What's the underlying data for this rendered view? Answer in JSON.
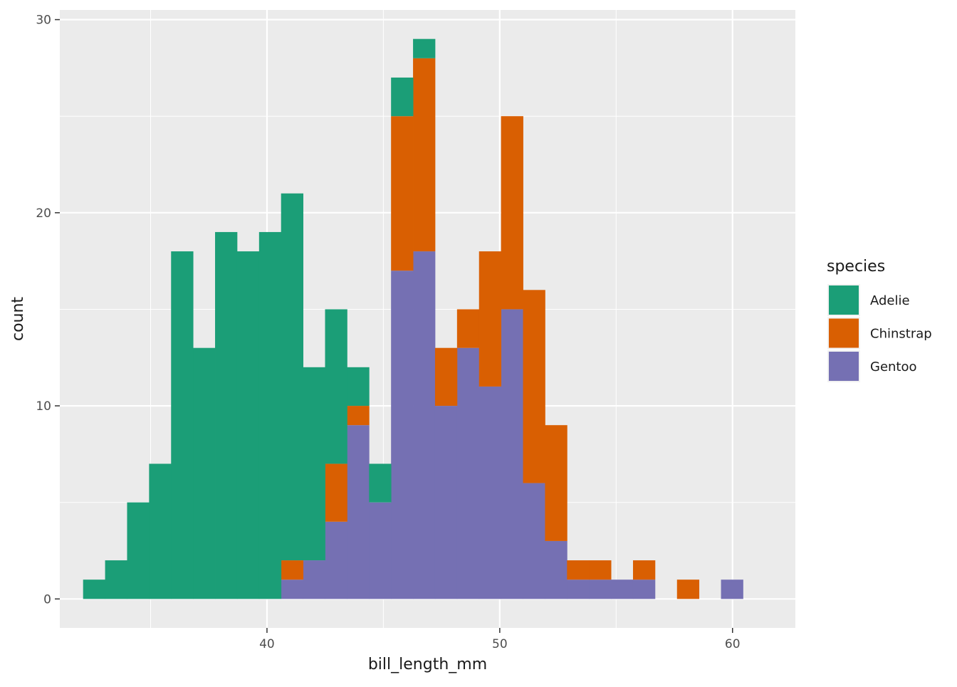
{
  "chart_data": {
    "type": "bar",
    "subtype": "stacked-histogram",
    "xlabel": "bill_length_mm",
    "ylabel": "count",
    "xlim": [
      31.1,
      62.7
    ],
    "ylim": [
      -1.5,
      30.5
    ],
    "xticks": [
      40,
      50,
      60
    ],
    "yticks": [
      0,
      10,
      20,
      30
    ],
    "grid": true,
    "bin_width": 0.945,
    "legend": {
      "title": "species",
      "position": "right",
      "entries": [
        "Adelie",
        "Chinstrap",
        "Gentoo"
      ]
    },
    "series": [
      {
        "name": "Adelie",
        "color": "#1B9E77",
        "bins": [
          {
            "x0": 32.1,
            "x1": 33.045,
            "count": 1
          },
          {
            "x0": 33.045,
            "x1": 33.99,
            "count": 2
          },
          {
            "x0": 33.99,
            "x1": 34.935,
            "count": 5
          },
          {
            "x0": 34.935,
            "x1": 35.88,
            "count": 7
          },
          {
            "x0": 35.88,
            "x1": 36.825,
            "count": 18
          },
          {
            "x0": 36.825,
            "x1": 37.77,
            "count": 13
          },
          {
            "x0": 37.77,
            "x1": 38.715,
            "count": 19
          },
          {
            "x0": 38.715,
            "x1": 39.66,
            "count": 18
          },
          {
            "x0": 39.66,
            "x1": 40.605,
            "count": 19
          },
          {
            "x0": 40.605,
            "x1": 41.55,
            "count": 19
          },
          {
            "x0": 41.55,
            "x1": 42.495,
            "count": 10
          },
          {
            "x0": 42.495,
            "x1": 43.44,
            "count": 8
          },
          {
            "x0": 43.44,
            "x1": 44.385,
            "count": 2
          },
          {
            "x0": 44.385,
            "x1": 45.33,
            "count": 2
          },
          {
            "x0": 45.33,
            "x1": 46.275,
            "count": 2
          },
          {
            "x0": 46.275,
            "x1": 47.22,
            "count": 1
          }
        ]
      },
      {
        "name": "Chinstrap",
        "color": "#D95F02",
        "bins": [
          {
            "x0": 40.605,
            "x1": 41.55,
            "count": 1
          },
          {
            "x0": 42.495,
            "x1": 43.44,
            "count": 3
          },
          {
            "x0": 43.44,
            "x1": 44.385,
            "count": 1
          },
          {
            "x0": 45.33,
            "x1": 46.275,
            "count": 8
          },
          {
            "x0": 46.275,
            "x1": 47.22,
            "count": 10
          },
          {
            "x0": 47.22,
            "x1": 48.165,
            "count": 3
          },
          {
            "x0": 48.165,
            "x1": 49.11,
            "count": 2
          },
          {
            "x0": 49.11,
            "x1": 50.055,
            "count": 7
          },
          {
            "x0": 50.055,
            "x1": 51.0,
            "count": 10
          },
          {
            "x0": 51.0,
            "x1": 51.945,
            "count": 10
          },
          {
            "x0": 51.945,
            "x1": 52.89,
            "count": 6
          },
          {
            "x0": 52.89,
            "x1": 53.835,
            "count": 1
          },
          {
            "x0": 53.835,
            "x1": 54.78,
            "count": 1
          },
          {
            "x0": 55.725,
            "x1": 56.67,
            "count": 1
          },
          {
            "x0": 57.615,
            "x1": 58.56,
            "count": 1
          }
        ]
      },
      {
        "name": "Gentoo",
        "color": "#7570B3",
        "bins": [
          {
            "x0": 40.605,
            "x1": 41.55,
            "count": 1
          },
          {
            "x0": 41.55,
            "x1": 42.495,
            "count": 2
          },
          {
            "x0": 42.495,
            "x1": 43.44,
            "count": 4
          },
          {
            "x0": 43.44,
            "x1": 44.385,
            "count": 9
          },
          {
            "x0": 44.385,
            "x1": 45.33,
            "count": 5
          },
          {
            "x0": 45.33,
            "x1": 46.275,
            "count": 17
          },
          {
            "x0": 46.275,
            "x1": 47.22,
            "count": 18
          },
          {
            "x0": 47.22,
            "x1": 48.165,
            "count": 10
          },
          {
            "x0": 48.165,
            "x1": 49.11,
            "count": 13
          },
          {
            "x0": 49.11,
            "x1": 50.055,
            "count": 11
          },
          {
            "x0": 50.055,
            "x1": 51.0,
            "count": 15
          },
          {
            "x0": 51.0,
            "x1": 51.945,
            "count": 6
          },
          {
            "x0": 51.945,
            "x1": 52.89,
            "count": 3
          },
          {
            "x0": 52.89,
            "x1": 53.835,
            "count": 1
          },
          {
            "x0": 53.835,
            "x1": 54.78,
            "count": 1
          },
          {
            "x0": 54.78,
            "x1": 55.725,
            "count": 1
          },
          {
            "x0": 55.725,
            "x1": 56.67,
            "count": 1
          },
          {
            "x0": 59.505,
            "x1": 60.45,
            "count": 1
          }
        ]
      }
    ]
  }
}
